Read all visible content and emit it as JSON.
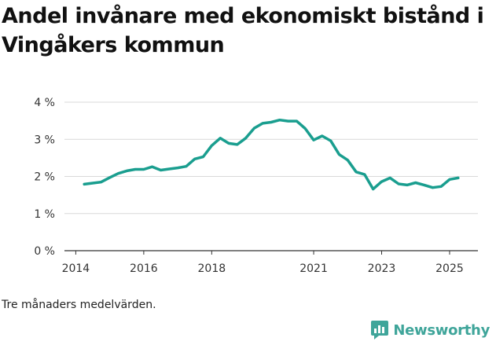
{
  "chart_data": {
    "type": "line",
    "title": "Andel invånare med ekonomiskt bistånd i Vingåkers kommun",
    "xlabel": "",
    "ylabel": "",
    "ylim": [
      0,
      4
    ],
    "xlim": [
      "2013-09",
      "2025-11"
    ],
    "y_ticks": [
      0,
      1,
      2,
      3,
      4
    ],
    "y_tick_labels": [
      "0 %",
      "1 %",
      "2 %",
      "3 %",
      "4 %"
    ],
    "x_ticks": [
      "2014-01",
      "2016-01",
      "2018-01",
      "2021-01",
      "2023-01",
      "2025-01"
    ],
    "x_tick_labels": [
      "2014",
      "2016",
      "2018",
      "2021",
      "2023",
      "2025"
    ],
    "grid": true,
    "line_color": "#1a9e8f",
    "series": [
      {
        "x": [
          "2014-04",
          "2014-07",
          "2014-10",
          "2015-01",
          "2015-04",
          "2015-07",
          "2015-10",
          "2016-01",
          "2016-04",
          "2016-07",
          "2016-10",
          "2017-01",
          "2017-04",
          "2017-07",
          "2017-10",
          "2018-01",
          "2018-04",
          "2018-07",
          "2018-10",
          "2019-01",
          "2019-04",
          "2019-07",
          "2019-10",
          "2020-01",
          "2020-04",
          "2020-07",
          "2020-10",
          "2021-01",
          "2021-04",
          "2021-07",
          "2021-10",
          "2022-01",
          "2022-04",
          "2022-07",
          "2022-10",
          "2023-01",
          "2023-04",
          "2023-07",
          "2023-10",
          "2024-01",
          "2024-04",
          "2024-07",
          "2024-10",
          "2025-01",
          "2025-04"
        ],
        "values": [
          1.79,
          1.82,
          1.85,
          1.97,
          2.08,
          2.15,
          2.19,
          2.19,
          2.26,
          2.17,
          2.2,
          2.23,
          2.27,
          2.47,
          2.53,
          2.83,
          3.03,
          2.89,
          2.86,
          3.03,
          3.3,
          3.43,
          3.46,
          3.52,
          3.49,
          3.49,
          3.29,
          2.98,
          3.09,
          2.96,
          2.59,
          2.44,
          2.12,
          2.05,
          1.66,
          1.86,
          1.96,
          1.8,
          1.77,
          1.83,
          1.77,
          1.7,
          1.73,
          1.92,
          1.96
        ]
      }
    ]
  },
  "footnote": "Tre månaders medelvärden.",
  "brand": {
    "name": "Newsworthy",
    "icon": "newsworthy-logo-icon",
    "color": "#3fa59a"
  }
}
